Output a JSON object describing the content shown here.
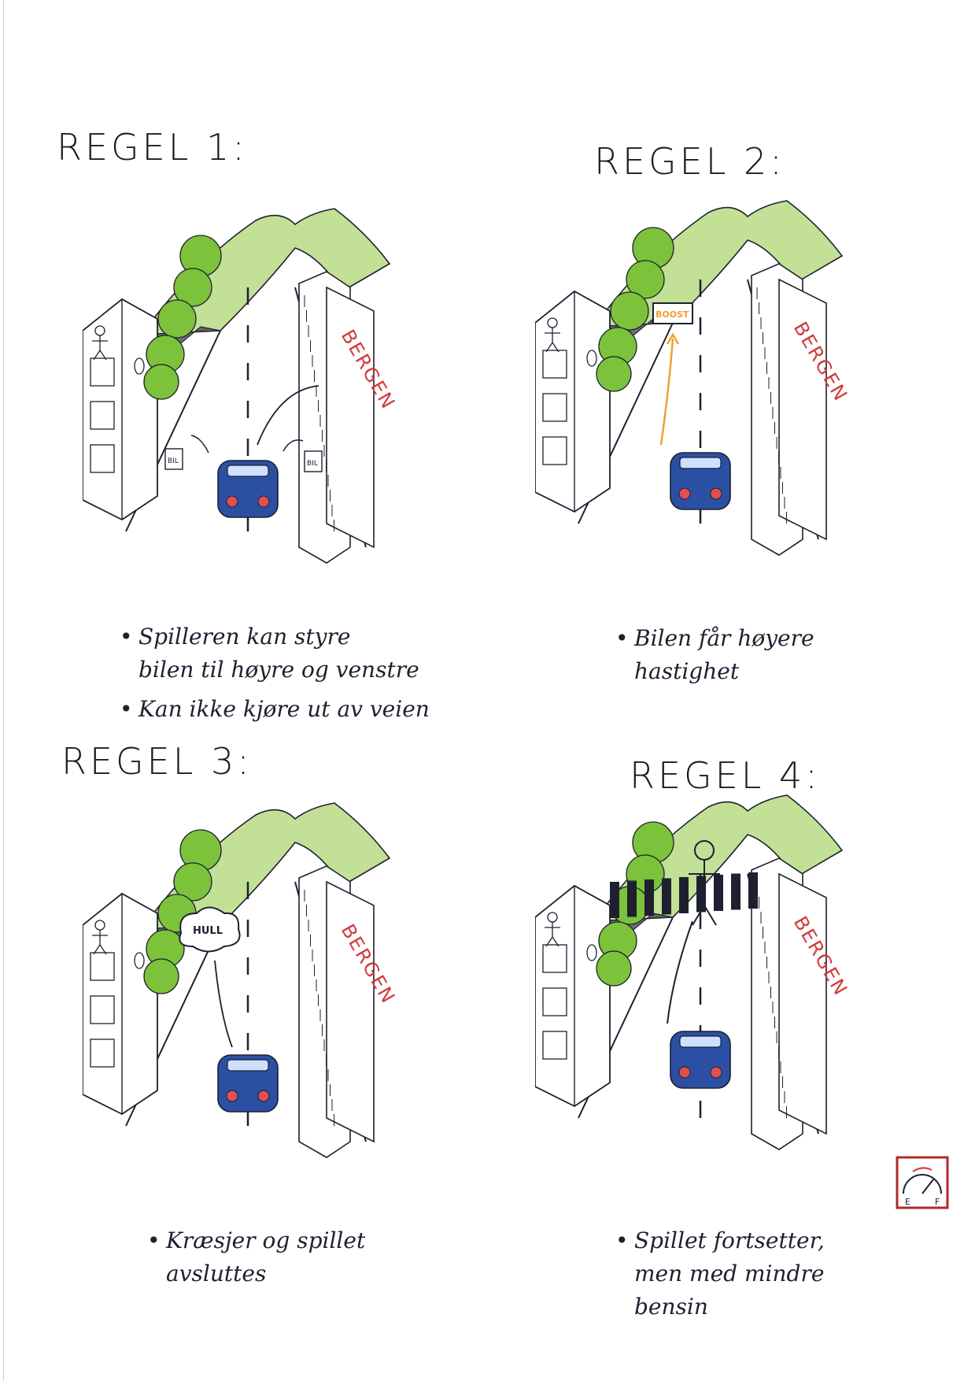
{
  "colors": {
    "ink": "#1e2030",
    "grass": "#8fc63f",
    "tree": "#7cc23a",
    "car_blue": "#2b4fa3",
    "car_light": "#e05050",
    "bergen_red": "#d23a3a",
    "boost_orange": "#f0a030",
    "fuel_box": "#b02a2a"
  },
  "panels": [
    {
      "title": "REGEL 1:",
      "sign": "BERGEN",
      "labels": [
        "BIL",
        "BIL"
      ],
      "bullets": [
        {
          "lines": [
            "Spilleren kan styre",
            "bilen til høyre og venstre"
          ]
        },
        {
          "lines": [
            "Kan ikke kjøre ut av veien"
          ]
        }
      ]
    },
    {
      "title": "REGEL 2:",
      "sign": "BERGEN",
      "boost": "BOOST",
      "bullets": [
        {
          "lines": [
            "Bilen får høyere",
            "hastighet"
          ]
        }
      ]
    },
    {
      "title": "REGEL 3:",
      "sign": "BERGEN",
      "hole": "HULL",
      "bullets": [
        {
          "lines": [
            "Kræsjer og spillet",
            "avsluttes"
          ]
        }
      ]
    },
    {
      "title": "REGEL 4:",
      "sign": "BERGEN",
      "fuel_gauge": {
        "e": "E",
        "f": "F"
      },
      "bullets": [
        {
          "lines": [
            "Spillet fortsetter,",
            "men med mindre",
            "bensin"
          ]
        }
      ]
    }
  ]
}
